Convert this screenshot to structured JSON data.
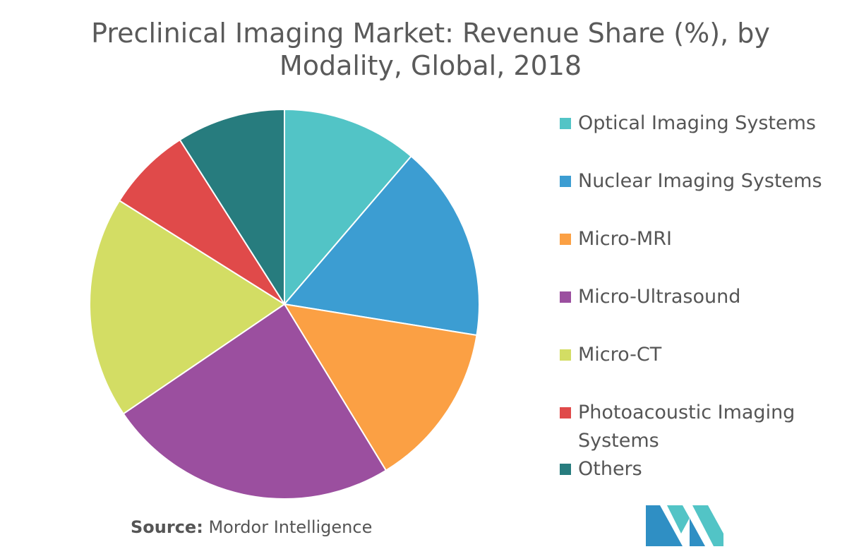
{
  "chart_data": {
    "type": "pie",
    "title": "Preclinical Imaging Market: Revenue Share (%), by Modality, Global, 2018",
    "categories": [
      "Optical Imaging Systems",
      "Nuclear Imaging Systems",
      "Micro-MRI",
      "Micro-Ultrasound",
      "Micro-CT",
      "Photoacoustic Imaging Systems",
      "Others"
    ],
    "values": [
      11.5,
      16.6,
      14.0,
      24.7,
      18.8,
      7.2,
      9.2
    ],
    "colors": [
      "#52c4c6",
      "#3c9dd2",
      "#fba044",
      "#9b4f9f",
      "#d3dd64",
      "#e04a4a",
      "#277c7e"
    ],
    "legend_position": "right",
    "start_angle_deg": 0,
    "direction": "clockwise"
  },
  "source": {
    "prefix": "Source:",
    "text": "Mordor Intelligence"
  },
  "logo": {
    "icon": "mordor-intelligence-logo",
    "colors": [
      "#2f8fc4",
      "#52c4c6"
    ]
  }
}
